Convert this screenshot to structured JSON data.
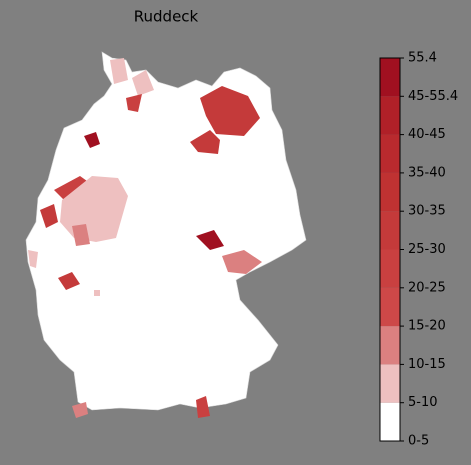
{
  "title": "Ruddeck",
  "colorbar": {
    "ticks": [
      "0-5",
      "5-10",
      "10-15",
      "15-20",
      "20-25",
      "25-30",
      "30-35",
      "35-40",
      "40-45",
      "45-55.4",
      "55.4"
    ],
    "colors": [
      "#ffffff",
      "#eec0c0",
      "#db8080",
      "#cd4848",
      "#c94040",
      "#c43a3a",
      "#bf3232",
      "#b92a2e",
      "#b02028",
      "#a01020"
    ]
  }
}
